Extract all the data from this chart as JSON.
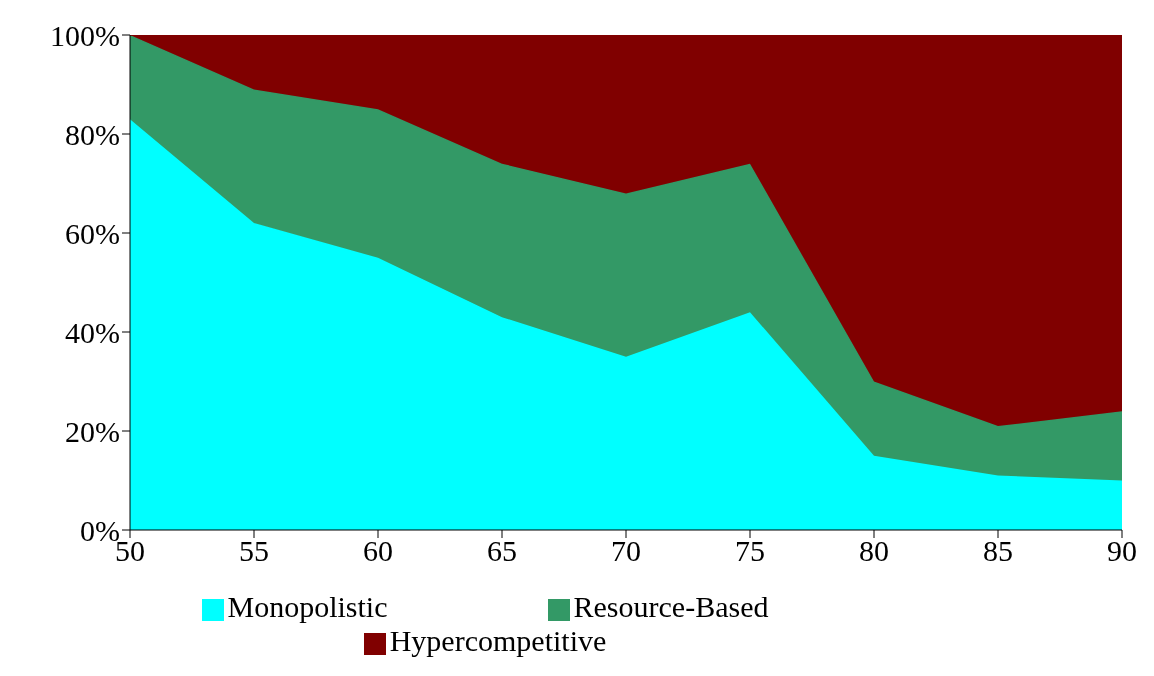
{
  "chart_data": {
    "type": "area",
    "stacked": true,
    "x": [
      50,
      55,
      60,
      65,
      70,
      75,
      80,
      85,
      90
    ],
    "series": [
      {
        "name": "Monopolistic",
        "color": "#00ffff",
        "values": [
          83,
          62,
          55,
          43,
          35,
          44,
          15,
          11,
          10
        ]
      },
      {
        "name": "Resource-Based",
        "color": "#339966",
        "values": [
          17,
          27,
          30,
          31,
          33,
          30,
          15,
          10,
          14
        ]
      },
      {
        "name": "Hypercompetitive",
        "color": "#800000",
        "values": [
          0,
          11,
          15,
          26,
          32,
          26,
          70,
          79,
          76
        ]
      }
    ],
    "xlim": [
      50,
      90
    ],
    "xticks": [
      50,
      55,
      60,
      65,
      70,
      75,
      80,
      85,
      90
    ],
    "ylim": [
      0,
      100
    ],
    "yticks": [
      {
        "value": 0,
        "label": "0%"
      },
      {
        "value": 20,
        "label": "20%"
      },
      {
        "value": 40,
        "label": "40%"
      },
      {
        "value": 60,
        "label": "60%"
      },
      {
        "value": 80,
        "label": "80%"
      },
      {
        "value": 100,
        "label": "100%"
      }
    ],
    "grid": false,
    "legend": "bottom"
  }
}
